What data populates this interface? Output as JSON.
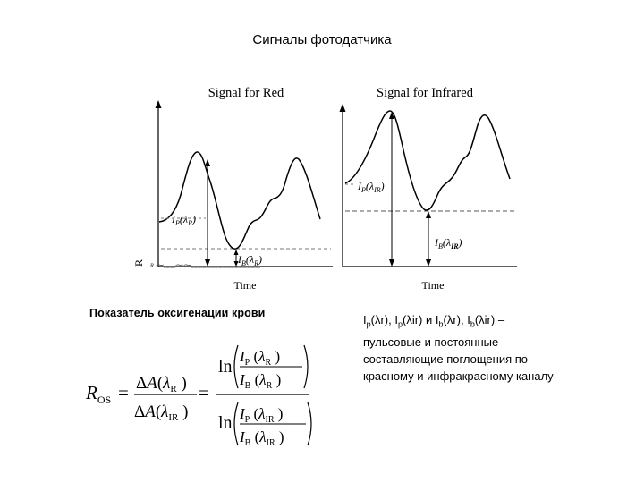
{
  "slide": {
    "title": "Сигналы фотодатчика",
    "oxygen_heading": "Показатель оксигенации крови",
    "legend_note": {
      "line1_parts": [
        "I",
        "p",
        "(λr), I",
        "p",
        "(λir) и I",
        "b",
        "(λr), I",
        "b",
        "(λir) –"
      ],
      "rest": "пульсовые и постоянные составляющие поглощения по красному и инфракрасному каналу"
    }
  },
  "red_panel": {
    "title": "Signal for Red",
    "xlabel": "Time",
    "ylabel": "R",
    "peak_label": "IP(λR)",
    "base_label": "IB(λR)"
  },
  "ir_panel": {
    "title": "Signal for Infrared",
    "xlabel": "Time",
    "peak_label": "IP(λIR)",
    "base_label": "IB(λIR)"
  },
  "formula": {
    "lhs": "ROS",
    "num": "ΔA(λR)",
    "den": "ΔA(λIR)",
    "ln": "ln",
    "top_num": "IP(λR)",
    "top_den": "IB(λR)",
    "bot_num": "IP(λIR)",
    "bot_den": "IB(λIR)",
    "eq": "="
  }
}
